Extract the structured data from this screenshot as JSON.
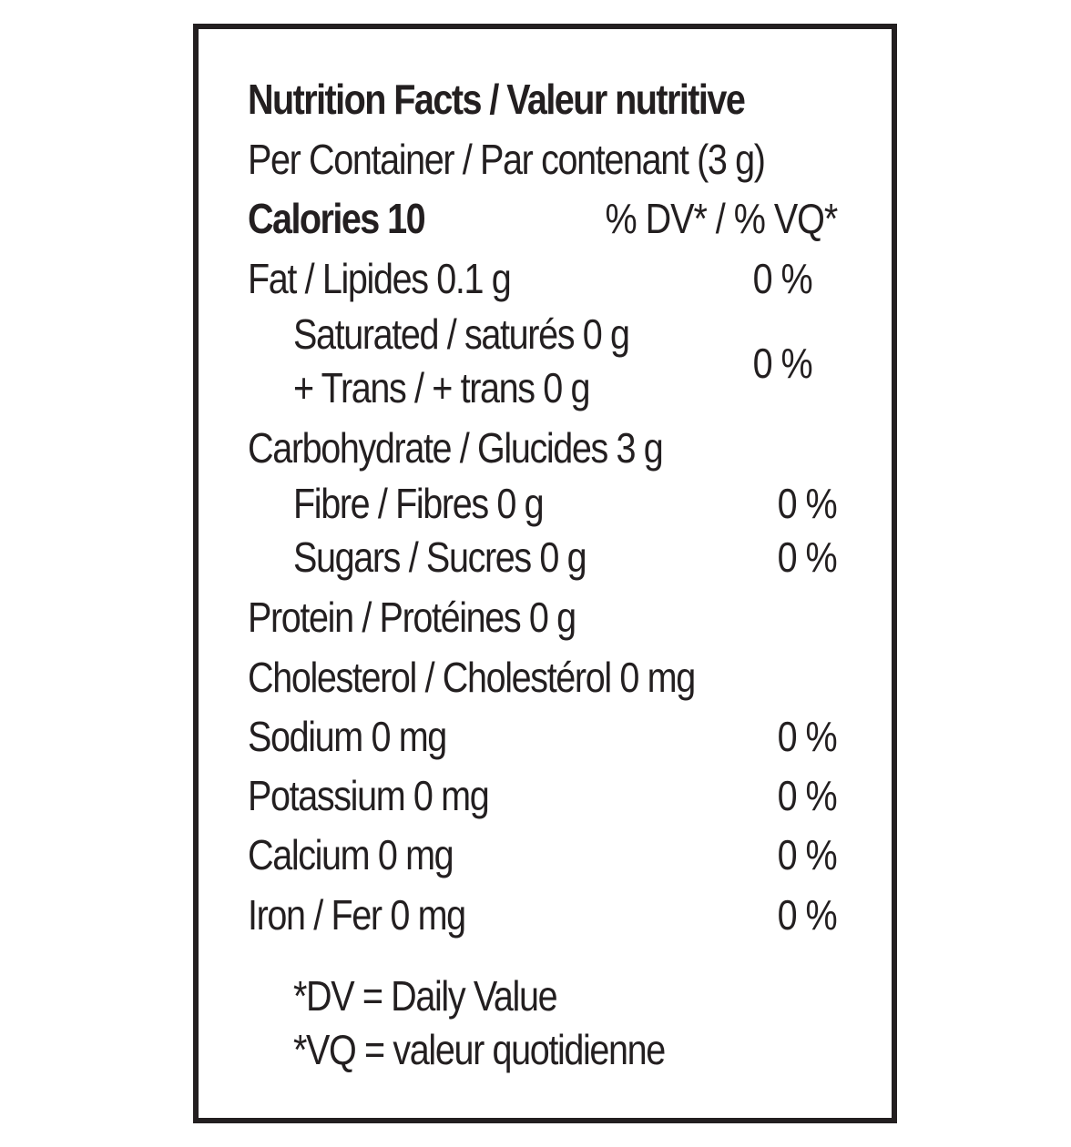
{
  "title": "Nutrition Facts / Valeur nutritive",
  "serving": "Per Container / Par contenant (3 g)",
  "calories": "Calories 10",
  "dv_header": "% DV* / % VQ*",
  "nutrients": {
    "fat": {
      "label": "Fat / Lipides 0.1 g",
      "dv": "0 %"
    },
    "saturated": {
      "label": "Saturated / saturés 0 g"
    },
    "trans": {
      "label": "+ Trans / + trans 0 g"
    },
    "saturated_trans_dv": "0 %",
    "carbohydrate": {
      "label": "Carbohydrate / Glucides 3 g"
    },
    "fibre": {
      "label": "Fibre / Fibres 0 g",
      "dv": "0 %"
    },
    "sugars": {
      "label": "Sugars / Sucres 0 g",
      "dv": "0 %"
    },
    "protein": {
      "label": "Protein / Protéines 0 g"
    },
    "cholesterol": {
      "label": "Cholesterol / Cholestérol 0 mg"
    },
    "sodium": {
      "label": "Sodium 0 mg",
      "dv": "0 %"
    },
    "potassium": {
      "label": "Potassium 0 mg",
      "dv": "0 %"
    },
    "calcium": {
      "label": "Calcium 0 mg",
      "dv": "0 %"
    },
    "iron": {
      "label": "Iron / Fer 0 mg",
      "dv": "0 %"
    }
  },
  "footnotes": {
    "dv": "*DV = Daily Value",
    "vq": "*VQ = valeur quotidienne"
  },
  "colors": {
    "ink": "#231f20",
    "background": "#ffffff"
  }
}
